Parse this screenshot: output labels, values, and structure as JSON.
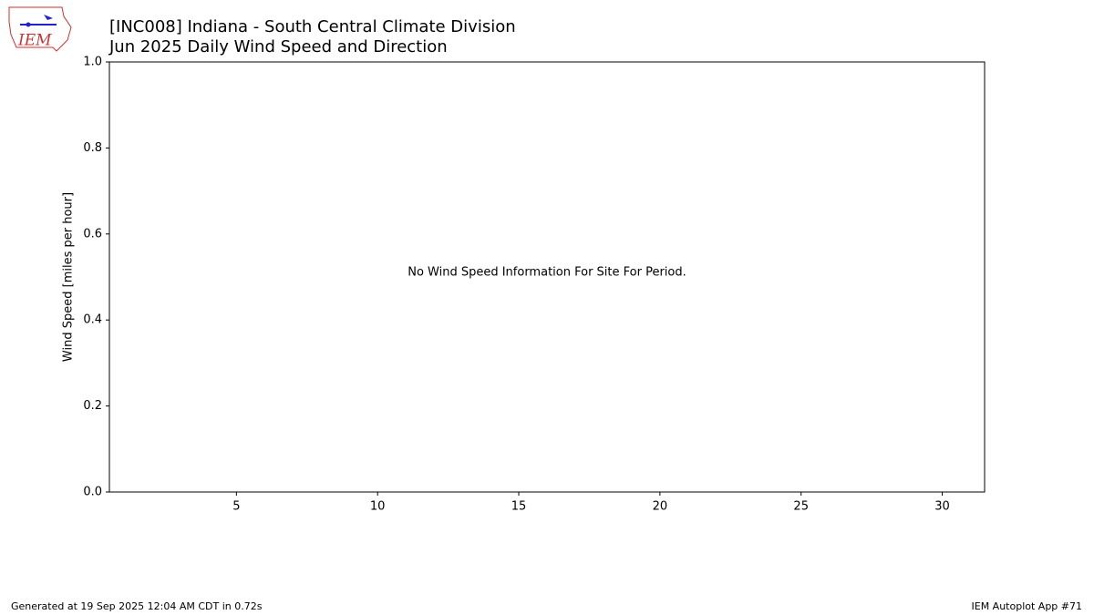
{
  "logo": "IEM",
  "chart_data": {
    "type": "line",
    "title": "[INC008] Indiana - South Central Climate Division",
    "subtitle": "Jun 2025 Daily Wind Speed and Direction",
    "y_label": "Wind Speed [miles per hour]",
    "annotation": "No Wind Speed Information For Site For Period.",
    "xlim": [
      0.5,
      31.5
    ],
    "xticks": [
      5,
      10,
      15,
      20,
      25,
      30
    ],
    "ylim": [
      0,
      1
    ],
    "yticks": [
      {
        "value": 0,
        "label": "0.0"
      },
      {
        "value": 0.2,
        "label": "0.2"
      },
      {
        "value": 0.4,
        "label": "0.4"
      },
      {
        "value": 0.6,
        "label": "0.6"
      },
      {
        "value": 0.8,
        "label": "0.8"
      },
      {
        "value": 1,
        "label": "1.0"
      }
    ],
    "grid": false
  },
  "footer": {
    "left": "Generated at 19 Sep 2025 12:04 AM CDT in 0.72s",
    "right": "IEM Autoplot App #71"
  }
}
